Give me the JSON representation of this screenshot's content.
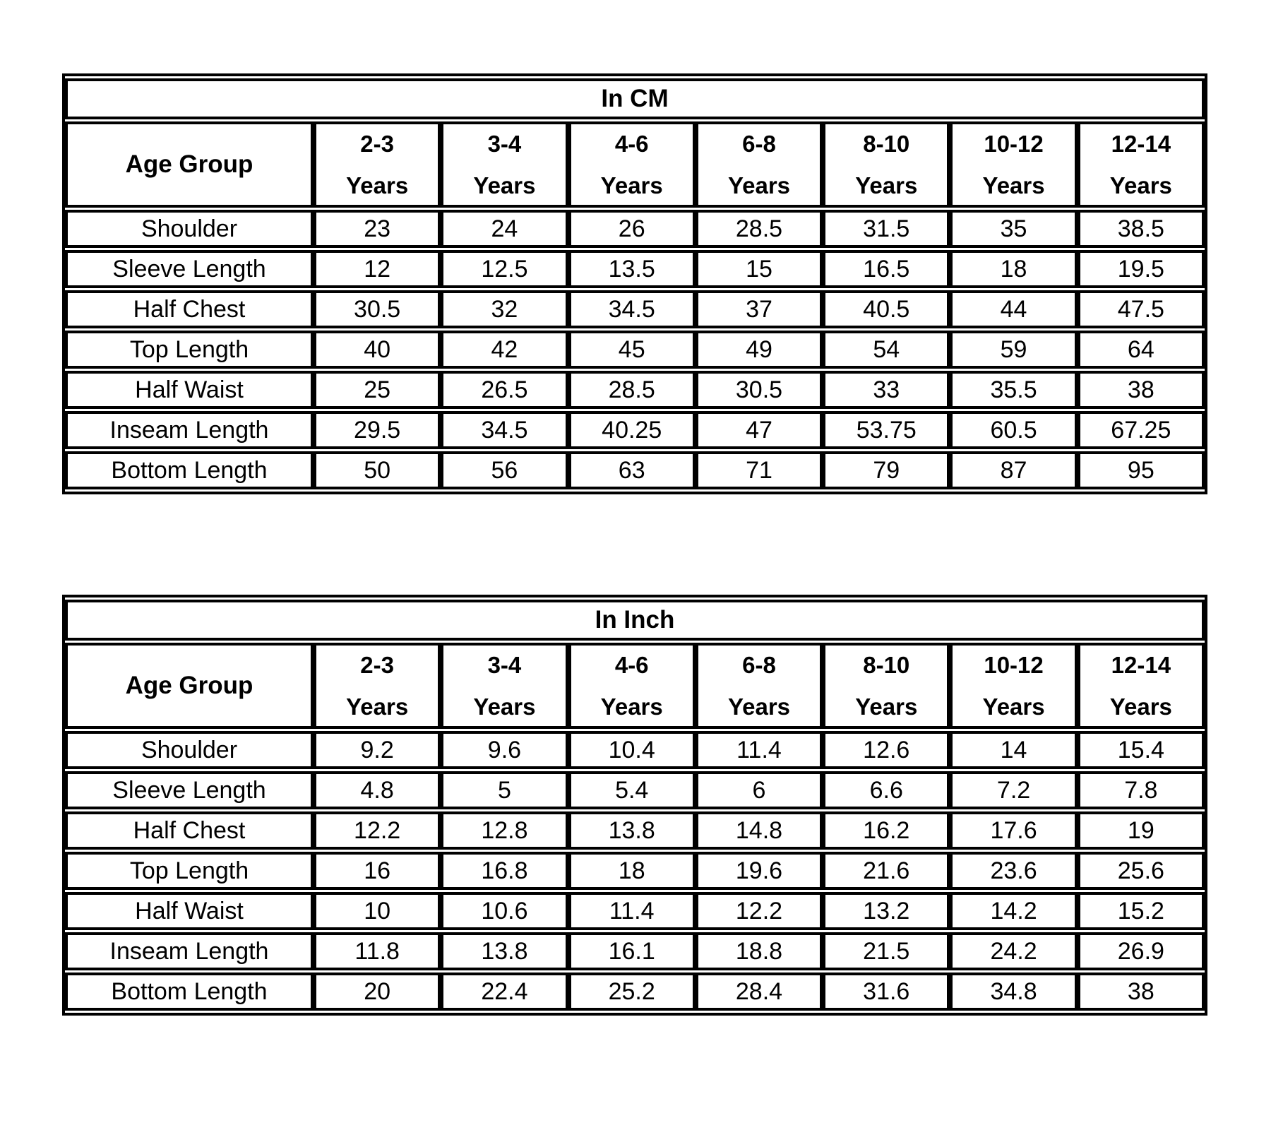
{
  "page": {
    "background": "#ffffff",
    "border_color": "#000000",
    "text_color": "#000000"
  },
  "tables": [
    {
      "title": "In CM",
      "corner_header": "Age Group",
      "age_columns": [
        {
          "range": "2-3",
          "unit": "Years"
        },
        {
          "range": "3-4",
          "unit": "Years"
        },
        {
          "range": "4-6",
          "unit": "Years"
        },
        {
          "range": "6-8",
          "unit": "Years"
        },
        {
          "range": "8-10",
          "unit": "Years"
        },
        {
          "range": "10-12",
          "unit": "Years"
        },
        {
          "range": "12-14",
          "unit": "Years"
        }
      ],
      "rows": [
        {
          "label": "Shoulder",
          "values": [
            "23",
            "24",
            "26",
            "28.5",
            "31.5",
            "35",
            "38.5"
          ]
        },
        {
          "label": "Sleeve Length",
          "values": [
            "12",
            "12.5",
            "13.5",
            "15",
            "16.5",
            "18",
            "19.5"
          ]
        },
        {
          "label": "Half Chest",
          "values": [
            "30.5",
            "32",
            "34.5",
            "37",
            "40.5",
            "44",
            "47.5"
          ]
        },
        {
          "label": "Top Length",
          "values": [
            "40",
            "42",
            "45",
            "49",
            "54",
            "59",
            "64"
          ]
        },
        {
          "label": "Half Waist",
          "values": [
            "25",
            "26.5",
            "28.5",
            "30.5",
            "33",
            "35.5",
            "38"
          ]
        },
        {
          "label": "Inseam Length",
          "values": [
            "29.5",
            "34.5",
            "40.25",
            "47",
            "53.75",
            "60.5",
            "67.25"
          ]
        },
        {
          "label": "Bottom Length",
          "values": [
            "50",
            "56",
            "63",
            "71",
            "79",
            "87",
            "95"
          ]
        }
      ]
    },
    {
      "title": "In Inch",
      "corner_header": "Age Group",
      "age_columns": [
        {
          "range": "2-3",
          "unit": "Years"
        },
        {
          "range": "3-4",
          "unit": "Years"
        },
        {
          "range": "4-6",
          "unit": "Years"
        },
        {
          "range": "6-8",
          "unit": "Years"
        },
        {
          "range": "8-10",
          "unit": "Years"
        },
        {
          "range": "10-12",
          "unit": "Years"
        },
        {
          "range": "12-14",
          "unit": "Years"
        }
      ],
      "rows": [
        {
          "label": "Shoulder",
          "values": [
            "9.2",
            "9.6",
            "10.4",
            "11.4",
            "12.6",
            "14",
            "15.4"
          ]
        },
        {
          "label": "Sleeve Length",
          "values": [
            "4.8",
            "5",
            "5.4",
            "6",
            "6.6",
            "7.2",
            "7.8"
          ]
        },
        {
          "label": "Half Chest",
          "values": [
            "12.2",
            "12.8",
            "13.8",
            "14.8",
            "16.2",
            "17.6",
            "19"
          ]
        },
        {
          "label": "Top Length",
          "values": [
            "16",
            "16.8",
            "18",
            "19.6",
            "21.6",
            "23.6",
            "25.6"
          ]
        },
        {
          "label": "Half Waist",
          "values": [
            "10",
            "10.6",
            "11.4",
            "12.2",
            "13.2",
            "14.2",
            "15.2"
          ]
        },
        {
          "label": "Inseam Length",
          "values": [
            "11.8",
            "13.8",
            "16.1",
            "18.8",
            "21.5",
            "24.2",
            "26.9"
          ]
        },
        {
          "label": "Bottom Length",
          "values": [
            "20",
            "22.4",
            "25.2",
            "28.4",
            "31.6",
            "34.8",
            "38"
          ]
        }
      ]
    }
  ]
}
